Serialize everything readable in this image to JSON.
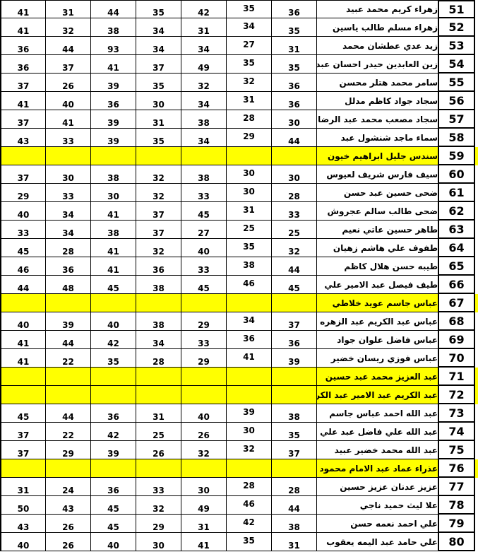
{
  "colors": {
    "highlight": "#FFFF00",
    "row_number_bg": "#D9D9D9",
    "border": "#000000",
    "background": "#FFFFFF",
    "text": "#000000"
  },
  "table": {
    "num_score_columns": 7,
    "rows": [
      {
        "no": "51",
        "name": "زهراء كريم محمد عبيد",
        "values": [
          "41",
          "31",
          "44",
          "35",
          "42",
          "35",
          "36"
        ],
        "highlighted": false
      },
      {
        "no": "52",
        "name": "زهراء مسلم طالب ياسين",
        "values": [
          "41",
          "32",
          "38",
          "34",
          "31",
          "34",
          "35"
        ],
        "highlighted": false
      },
      {
        "no": "53",
        "name": "زيد عدي عطشان محمد",
        "values": [
          "36",
          "44",
          "93",
          "34",
          "34",
          "27",
          "31"
        ],
        "highlighted": false
      },
      {
        "no": "54",
        "name": "زين العابدين حيدر احسان عبد علي",
        "values": [
          "36",
          "37",
          "41",
          "37",
          "49",
          "35",
          "35"
        ],
        "highlighted": false
      },
      {
        "no": "55",
        "name": "سامر محمد هتلر محسن",
        "values": [
          "37",
          "26",
          "39",
          "35",
          "32",
          "32",
          "36"
        ],
        "highlighted": false
      },
      {
        "no": "56",
        "name": "سجاد جواد كاظم مدلل",
        "values": [
          "41",
          "40",
          "36",
          "30",
          "34",
          "31",
          "36"
        ],
        "highlighted": false
      },
      {
        "no": "57",
        "name": "سجاد مصعب محمد عبد الرضا",
        "values": [
          "37",
          "41",
          "39",
          "31",
          "38",
          "28",
          "30"
        ],
        "highlighted": false
      },
      {
        "no": "58",
        "name": "سماء ماجد شنشول عبد",
        "values": [
          "43",
          "33",
          "39",
          "35",
          "34",
          "29",
          "44"
        ],
        "highlighted": false
      },
      {
        "no": "59",
        "name": "سندس جليل ابراهيم خيون",
        "values": [],
        "highlighted": true
      },
      {
        "no": "60",
        "name": "سيف فارس شريف لعيوس",
        "values": [
          "37",
          "30",
          "38",
          "32",
          "38",
          "30",
          "30"
        ],
        "highlighted": false
      },
      {
        "no": "61",
        "name": "ضحى حسين عبد حسن",
        "values": [
          "29",
          "33",
          "30",
          "32",
          "33",
          "30",
          "28"
        ],
        "highlighted": false
      },
      {
        "no": "62",
        "name": "ضحى طالب سالم عجروش",
        "values": [
          "40",
          "34",
          "41",
          "37",
          "45",
          "31",
          "33"
        ],
        "highlighted": false
      },
      {
        "no": "63",
        "name": "طاهر حسين عاتي نعيم",
        "values": [
          "33",
          "34",
          "38",
          "37",
          "27",
          "25",
          "25"
        ],
        "highlighted": false
      },
      {
        "no": "64",
        "name": "طفوف علي هاشم زهيان",
        "values": [
          "45",
          "28",
          "41",
          "32",
          "40",
          "35",
          "32"
        ],
        "highlighted": false
      },
      {
        "no": "65",
        "name": "طيبه حسن هلال كاظم",
        "values": [
          "46",
          "36",
          "41",
          "36",
          "33",
          "38",
          "44"
        ],
        "highlighted": false
      },
      {
        "no": "66",
        "name": "طيف فيصل عبد الامير علي",
        "values": [
          "44",
          "48",
          "45",
          "38",
          "45",
          "46",
          "45"
        ],
        "highlighted": false
      },
      {
        "no": "67",
        "name": "عباس جاسم عويد خلاطي",
        "values": [],
        "highlighted": true
      },
      {
        "no": "68",
        "name": "عباس عبد الكريم عبد الزهره محمد",
        "values": [
          "40",
          "39",
          "40",
          "38",
          "29",
          "34",
          "37"
        ],
        "highlighted": false
      },
      {
        "no": "69",
        "name": "عباس فاضل علوان جواد",
        "values": [
          "41",
          "44",
          "42",
          "34",
          "33",
          "36",
          "36"
        ],
        "highlighted": false
      },
      {
        "no": "70",
        "name": "عباس فوزي ريسان خضير",
        "values": [
          "41",
          "22",
          "35",
          "28",
          "29",
          "41",
          "39"
        ],
        "highlighted": false
      },
      {
        "no": "71",
        "name": "عبد العزيز محمد عبد حسين",
        "values": [],
        "highlighted": true
      },
      {
        "no": "72",
        "name": "عبد الكريم عبد الامير عبد الكريم صافي",
        "values": [],
        "highlighted": true
      },
      {
        "no": "73",
        "name": "عبد الله احمد عباس جاسم",
        "values": [
          "45",
          "44",
          "36",
          "31",
          "40",
          "39",
          "38"
        ],
        "highlighted": false
      },
      {
        "no": "74",
        "name": "عبد الله علي فاضل عبد علي",
        "values": [
          "37",
          "22",
          "42",
          "25",
          "26",
          "30",
          "35"
        ],
        "highlighted": false
      },
      {
        "no": "75",
        "name": "عبد الله محمد خضير عبيد",
        "values": [
          "37",
          "29",
          "39",
          "26",
          "32",
          "32",
          "37"
        ],
        "highlighted": false
      },
      {
        "no": "76",
        "name": "عذراء عماد عبد الامام محمود",
        "values": [],
        "highlighted": true
      },
      {
        "no": "77",
        "name": "عزيز عدنان عزيز حسين",
        "values": [
          "31",
          "24",
          "36",
          "33",
          "30",
          "28",
          "28"
        ],
        "highlighted": false
      },
      {
        "no": "78",
        "name": "علا ليث حميد ناجي",
        "values": [
          "50",
          "43",
          "45",
          "32",
          "49",
          "46",
          "44"
        ],
        "highlighted": false
      },
      {
        "no": "79",
        "name": "علي احمد نعمه حسن",
        "values": [
          "43",
          "26",
          "45",
          "29",
          "31",
          "42",
          "38"
        ],
        "highlighted": false
      },
      {
        "no": "80",
        "name": "علي حامد عبد اليمه يعقوب",
        "values": [
          "40",
          "26",
          "40",
          "30",
          "41",
          "35",
          "31"
        ],
        "highlighted": false
      }
    ]
  }
}
